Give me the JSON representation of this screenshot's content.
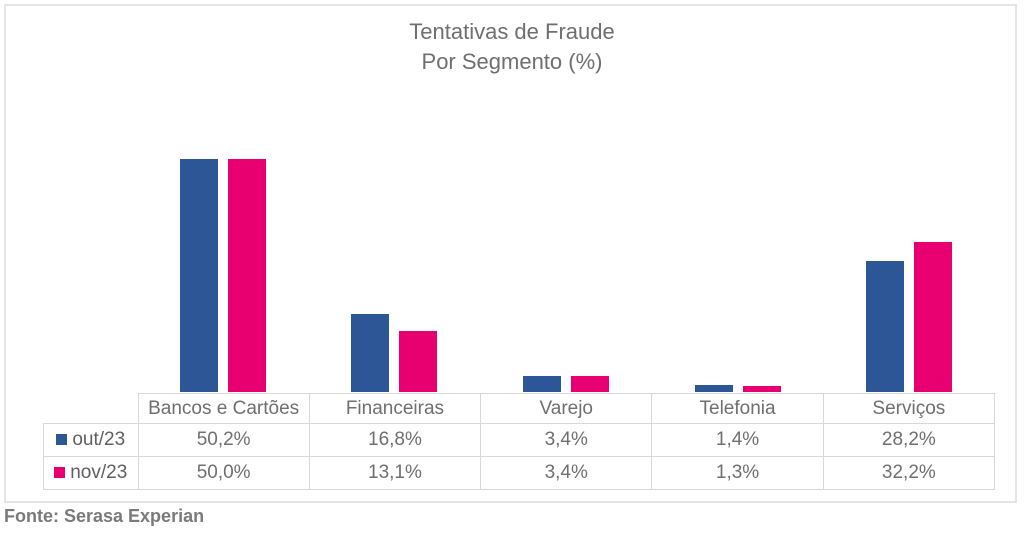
{
  "chart": {
    "title_line1": "Tentativas de Fraude",
    "title_line2": "Por Segmento (%)"
  },
  "chart_data": {
    "type": "bar",
    "title": "Tentativas de Fraude Por Segmento (%)",
    "categories": [
      "Bancos e Cartões",
      "Financeiras",
      "Varejo",
      "Telefonia",
      "Serviços"
    ],
    "series": [
      {
        "name": "out/23",
        "color": "#2d5696",
        "values": [
          50.2,
          16.8,
          3.4,
          1.4,
          28.2
        ],
        "value_labels": [
          "50,2%",
          "16,8%",
          "3,4%",
          "1,4%",
          "28,2%"
        ]
      },
      {
        "name": "nov/23",
        "color": "#e80070",
        "values": [
          50.0,
          13.1,
          3.4,
          1.3,
          32.2
        ],
        "value_labels": [
          "50,0%",
          "13,1%",
          "3,4%",
          "1,3%",
          "32,2%"
        ]
      }
    ],
    "xlabel": "",
    "ylabel": "",
    "ylim": [
      0,
      60
    ],
    "grid": false,
    "value_suffix": "%",
    "legend_position": "table-rows-left"
  },
  "footer": {
    "source": "Fonte: Serasa Experian"
  }
}
